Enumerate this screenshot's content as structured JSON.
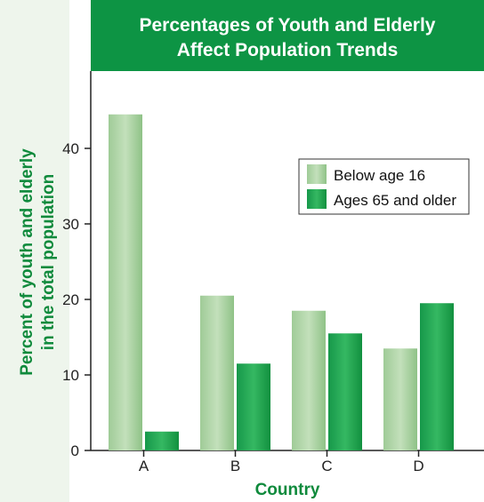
{
  "chart_data": {
    "type": "bar",
    "title": [
      "Percentages of Youth and Elderly",
      "Affect Population Trends"
    ],
    "xlabel": "Country",
    "ylabel": [
      "Percent of youth and elderly",
      "in the total population"
    ],
    "categories": [
      "A",
      "B",
      "C",
      "D"
    ],
    "series": [
      {
        "name": "Below age 16",
        "values": [
          44.5,
          20.5,
          18.5,
          13.5
        ],
        "color": "#a6d19d"
      },
      {
        "name": "Ages 65 and older",
        "values": [
          2.5,
          11.5,
          15.5,
          19.5
        ],
        "color": "#22a54e"
      }
    ],
    "ylim": [
      0,
      50
    ],
    "yticks": [
      0,
      10,
      20,
      30,
      40
    ],
    "grid": false,
    "legend_position": "right"
  },
  "colors": {
    "title_banner": "#0d9444",
    "panel_background": "#eef5ec",
    "axis_label": "#0f8a3c"
  }
}
